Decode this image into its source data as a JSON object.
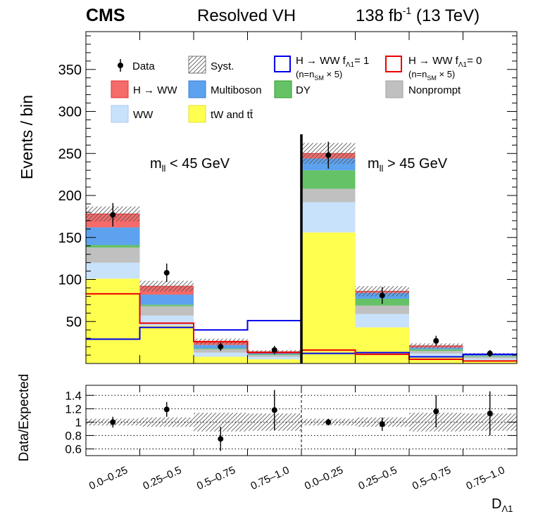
{
  "chart_data": {
    "type": "stacked-bar",
    "header": {
      "experiment": "CMS",
      "analysis": "Resolved VH",
      "lumi_value": "138 fb",
      "lumi_exp": "-1",
      "lumi_energy": " (13 TeV)"
    },
    "ylabel": "Events / bin",
    "xlabel_main": "D",
    "xlabel_sub": "Λ1",
    "ratio_ylabel": "Data/Expected",
    "ylim": [
      0,
      395
    ],
    "yticks": [
      50,
      100,
      150,
      200,
      250,
      300,
      350
    ],
    "ratio_ylim": [
      0.5,
      1.55
    ],
    "ratio_yticks": [
      "0.6",
      "0.8",
      "1",
      "1.2",
      "1.4"
    ],
    "categories": [
      "0.0–0.25",
      "0.25–0.5",
      "0.5–0.75",
      "0.75–1.0",
      "0.0–0.25",
      "0.25–0.5",
      "0.5–0.75",
      "0.75–1.0"
    ],
    "region_labels": [
      {
        "main": "m",
        "sub": "ll",
        "rest": " < 45 GeV"
      },
      {
        "main": "m",
        "sub": "ll",
        "rest": " > 45 GeV"
      }
    ],
    "legend": {
      "data": "Data",
      "syst": "Syst.",
      "sig1_line1": "H → WW f",
      "sig1_sub": "Λ1",
      "sig1_val": "= 1",
      "sig0_line1": "H → WW f",
      "sig0_sub": "Λ1",
      "sig0_val": "= 0",
      "scale_pre": "(n=n",
      "scale_sub": "SM",
      "scale_post": " × 5)"
    },
    "series": [
      {
        "name": "tW and tt̄",
        "key": "top",
        "color": "#ffff50",
        "values": [
          101,
          45,
          8,
          5,
          156,
          43,
          8,
          4
        ]
      },
      {
        "name": "WW",
        "key": "ww",
        "color": "#c8e2fb",
        "values": [
          19,
          12,
          5,
          3,
          36,
          16,
          4,
          2
        ]
      },
      {
        "name": "Nonprompt",
        "key": "nonprompt",
        "color": "#c0c0c0",
        "values": [
          18,
          11,
          4,
          2,
          16,
          10,
          3,
          2
        ]
      },
      {
        "name": "DY",
        "key": "dy",
        "color": "#66c266",
        "values": [
          3,
          2,
          1,
          1,
          22,
          8,
          2,
          1
        ]
      },
      {
        "name": "Multiboson",
        "key": "multiboson",
        "color": "#5da2ee",
        "values": [
          21,
          12,
          4,
          2,
          14,
          7,
          2,
          1
        ]
      },
      {
        "name": "H → WW",
        "key": "hww",
        "color": "#f56a6a",
        "values": [
          16,
          10,
          4,
          1,
          6,
          2,
          2,
          1
        ]
      }
    ],
    "syst_rel": [
      0.05,
      0.07,
      0.14,
      0.13,
      0.05,
      0.07,
      0.14,
      0.13
    ],
    "signal_fa1_1": {
      "color": "#0000ee",
      "values": [
        29,
        43,
        40,
        51,
        12,
        13,
        8,
        11
      ]
    },
    "signal_fa1_0": {
      "color": "#ee0000",
      "values": [
        83,
        48,
        26,
        13,
        16,
        11,
        5,
        3
      ]
    },
    "data": {
      "values": [
        177,
        108,
        20,
        16,
        248,
        81,
        27,
        12
      ],
      "errors": [
        14,
        11,
        5,
        5,
        16,
        10,
        6,
        4
      ]
    },
    "ratio": {
      "values": [
        1.0,
        1.19,
        0.75,
        1.18,
        1.0,
        0.97,
        1.16,
        1.13
      ],
      "errors": [
        0.08,
        0.11,
        0.18,
        0.3,
        0.05,
        0.1,
        0.24,
        0.33
      ]
    }
  }
}
